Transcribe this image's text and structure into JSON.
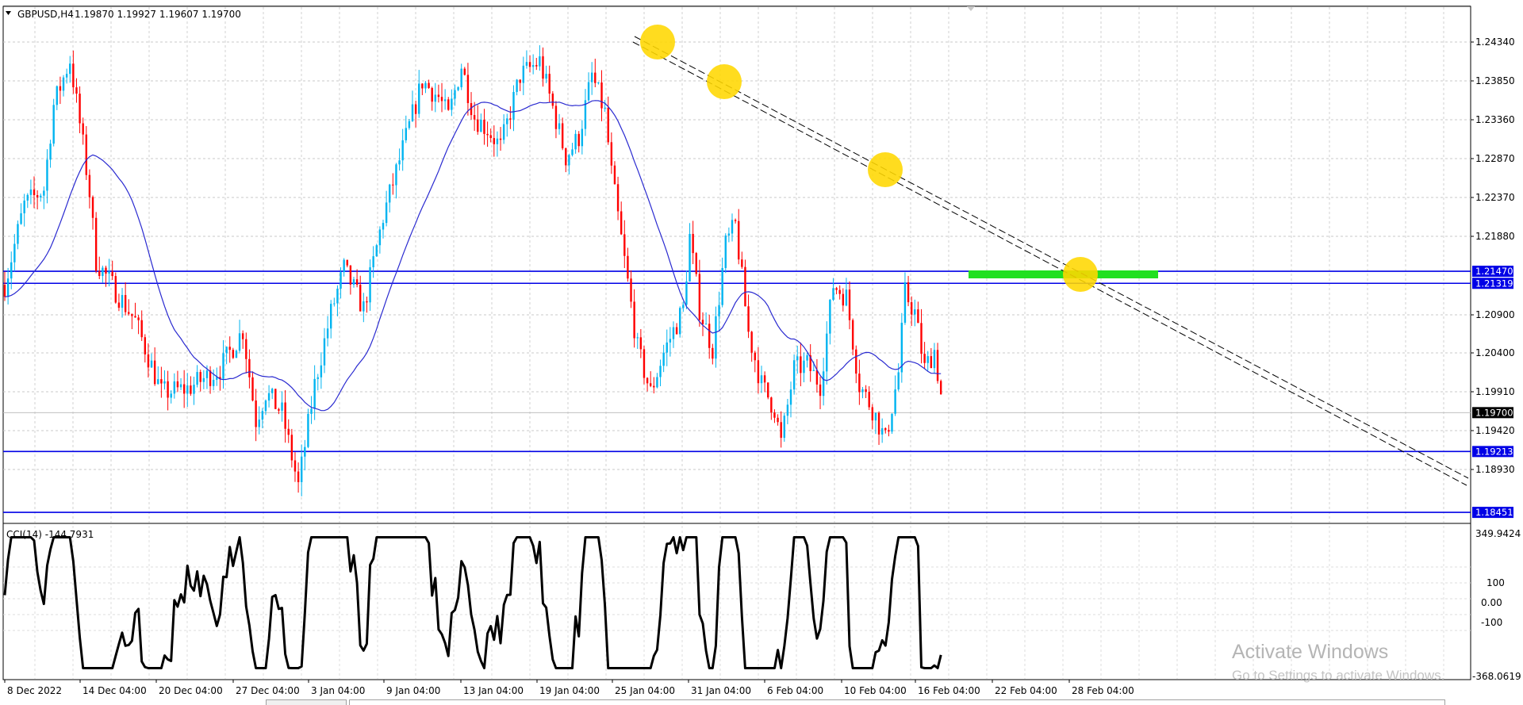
{
  "header": {
    "symbol_timeframe": "GBPUSD,H4",
    "ohlc": "1.19870 1.19927 1.19607 1.19700"
  },
  "price_axis": {
    "ticks": [
      "1.24340",
      "1.23850",
      "1.23360",
      "1.22870",
      "1.22370",
      "1.21880",
      "1.20900",
      "1.20400",
      "1.19910",
      "1.19420",
      "1.18930"
    ]
  },
  "price_tags": [
    {
      "label": "1.21470",
      "value": 1.2147,
      "color": "#0000e6"
    },
    {
      "label": "1.21319",
      "value": 1.21319,
      "color": "#0000e6"
    },
    {
      "label": "1.19700",
      "value": 1.197,
      "color": "#000000"
    },
    {
      "label": "1.19213",
      "value": 1.19213,
      "color": "#0000e6"
    },
    {
      "label": "1.18451",
      "value": 1.18451,
      "color": "#0000e6"
    }
  ],
  "horizontal_levels": [
    1.2147,
    1.21319,
    1.19213,
    1.18451
  ],
  "indicator": {
    "label": "CCI(14) -144.7931",
    "axis_ticks": [
      "349.9424",
      "100",
      "0.00",
      "-100",
      "-368.0619"
    ]
  },
  "time_axis": {
    "labels": [
      "8 Dec 2022",
      "14 Dec 04:00",
      "20 Dec 04:00",
      "27 Dec 04:00",
      "3 Jan 04:00",
      "9 Jan 04:00",
      "13 Jan 04:00",
      "19 Jan 04:00",
      "25 Jan 04:00",
      "31 Jan 04:00",
      "6 Feb 04:00",
      "10 Feb 04:00",
      "16 Feb 04:00",
      "22 Feb 04:00",
      "28 Feb 04:00"
    ]
  },
  "watermark": {
    "title": "Activate Windows",
    "subtitle": "Go to Settings to activate Windows."
  },
  "colors": {
    "bull": "#00b4f0",
    "bear": "#ff0000",
    "ma": "#2a2ad0",
    "level": "#0000e6",
    "zone": "#20e020",
    "highlight": "#ffd700",
    "cci": "#000000"
  },
  "chart_data": {
    "type": "candlestick",
    "symbol": "GBPUSD",
    "timeframe": "H4",
    "last_close": 1.197,
    "ma_series": [
      {
        "x": "8 Dec 2022",
        "y": 1.2131
      },
      {
        "x": "14 Dec 04:00",
        "y": 1.2264
      },
      {
        "x": "20 Dec 04:00",
        "y": 1.225
      },
      {
        "x": "27 Dec 04:00",
        "y": 1.2156
      },
      {
        "x": "3 Jan 04:00",
        "y": 1.2065
      },
      {
        "x": "9 Jan 04:00",
        "y": 1.2025
      },
      {
        "x": "13 Jan 04:00",
        "y": 1.2075
      },
      {
        "x": "19 Jan 04:00",
        "y": 1.2215
      },
      {
        "x": "25 Jan 04:00",
        "y": 1.2305
      },
      {
        "x": "31 Jan 04:00",
        "y": 1.2365
      },
      {
        "x": "6 Feb 04:00",
        "y": 1.2292
      },
      {
        "x": "10 Feb 04:00",
        "y": 1.2161
      },
      {
        "x": "16 Feb 04:00",
        "y": 1.2065
      },
      {
        "x": "22 Feb 04:00",
        "y": 1.2069
      },
      {
        "x": "28 Feb 04:00",
        "y": 1.2035
      }
    ]
  }
}
